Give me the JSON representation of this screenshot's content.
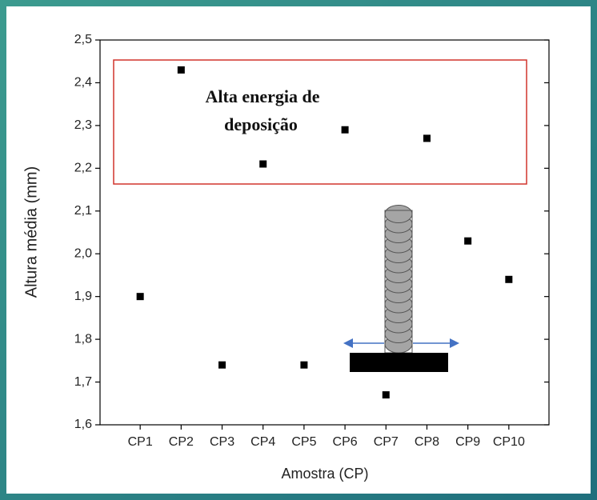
{
  "chart_data": {
    "type": "scatter",
    "xlabel": "Amostra (CP)",
    "ylabel": "Altura média (mm)",
    "categories": [
      "CP1",
      "CP2",
      "CP3",
      "CP4",
      "CP5",
      "CP6",
      "CP7",
      "CP8",
      "CP9",
      "CP10"
    ],
    "values": [
      1.9,
      2.43,
      1.74,
      2.21,
      1.74,
      2.29,
      1.67,
      2.27,
      2.03,
      1.94
    ],
    "color": "#000000",
    "ylim": [
      1.6,
      2.5
    ],
    "yticks": [
      {
        "value": 1.6,
        "label": "1,6"
      },
      {
        "value": 1.7,
        "label": "1,7"
      },
      {
        "value": 1.8,
        "label": "1,8"
      },
      {
        "value": 1.9,
        "label": "1,9"
      },
      {
        "value": 2.0,
        "label": "2,0"
      },
      {
        "value": 2.1,
        "label": "2,1"
      },
      {
        "value": 2.2,
        "label": "2,2"
      },
      {
        "value": 2.3,
        "label": "2,3"
      },
      {
        "value": 2.4,
        "label": "2,4"
      },
      {
        "value": 2.5,
        "label": "2,5"
      }
    ],
    "annotation": [
      "Alta energia de",
      "deposição"
    ],
    "annotation_color": "#d0342c"
  }
}
